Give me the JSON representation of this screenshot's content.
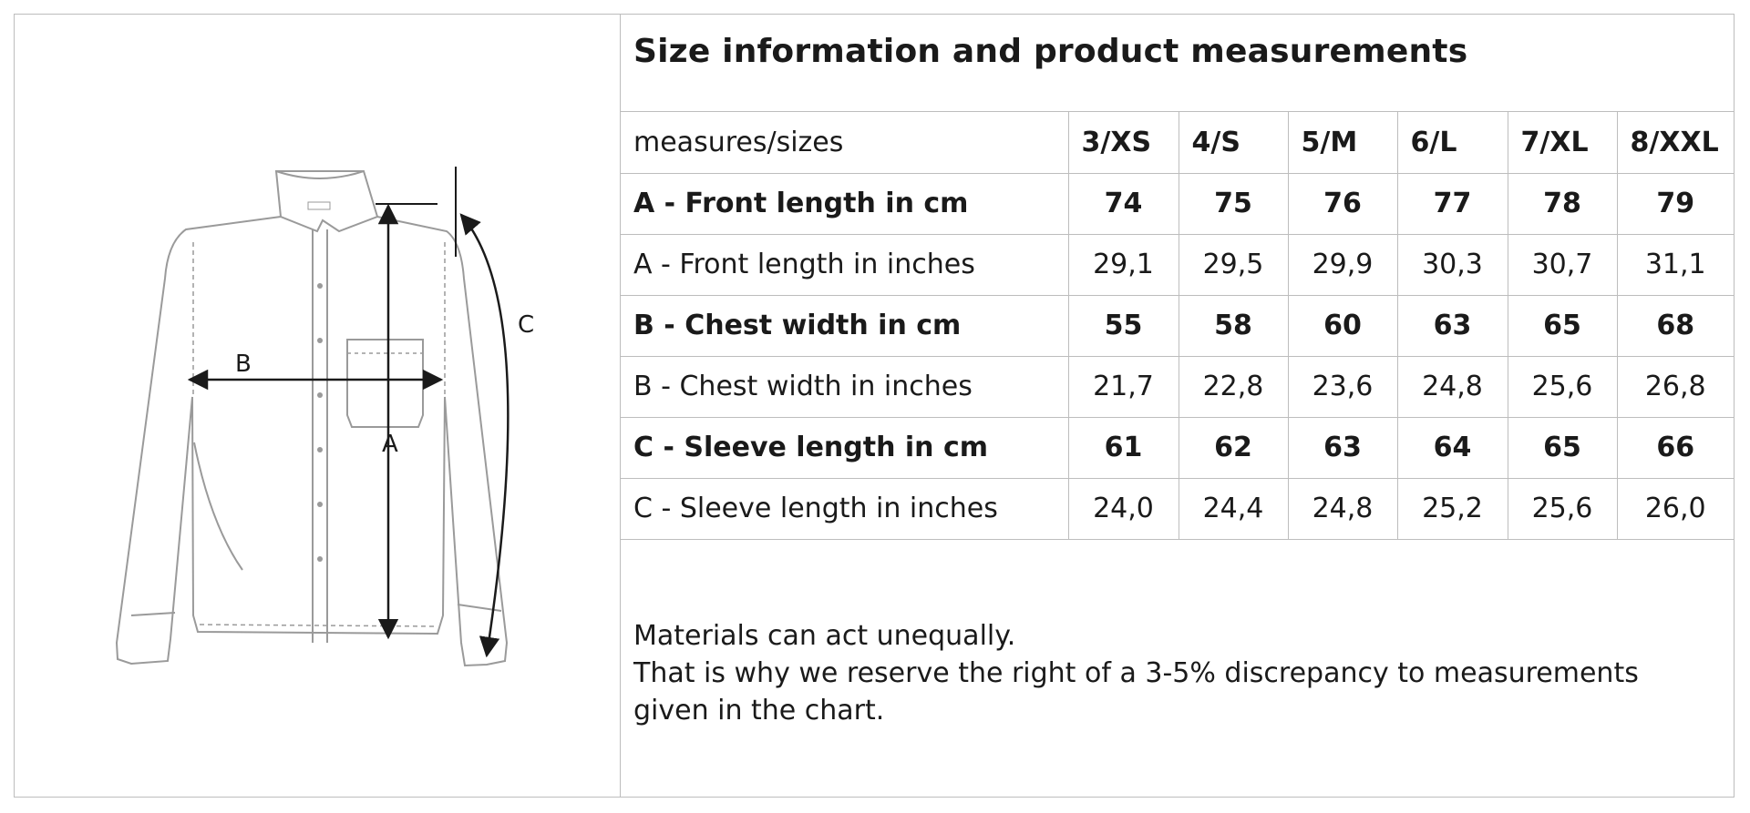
{
  "title": "Size information and product measurements",
  "table": {
    "corner_label": "measures/sizes",
    "sizes": [
      "3/XS",
      "4/S",
      "5/M",
      "6/L",
      "7/XL",
      "8/XXL"
    ],
    "rows": [
      {
        "label": "A - Front length in cm",
        "bold": true,
        "values": [
          "74",
          "75",
          "76",
          "77",
          "78",
          "79"
        ]
      },
      {
        "label": "A - Front length in inches",
        "bold": false,
        "values": [
          "29,1",
          "29,5",
          "29,9",
          "30,3",
          "30,7",
          "31,1"
        ]
      },
      {
        "label": "B - Chest width in cm",
        "bold": true,
        "values": [
          "55",
          "58",
          "60",
          "63",
          "65",
          "68"
        ]
      },
      {
        "label": "B - Chest width in inches",
        "bold": false,
        "values": [
          "21,7",
          "22,8",
          "23,6",
          "24,8",
          "25,6",
          "26,8"
        ]
      },
      {
        "label": "C - Sleeve length in cm",
        "bold": true,
        "values": [
          "61",
          "62",
          "63",
          "64",
          "65",
          "66"
        ]
      },
      {
        "label": "C - Sleeve length in inches",
        "bold": false,
        "values": [
          "24,0",
          "24,4",
          "24,8",
          "25,2",
          "25,6",
          "26,0"
        ]
      }
    ]
  },
  "note": {
    "line1": "Materials can act unequally.",
    "line2": "That is why we reserve the right of a 3-5% discrepancy to measurements given in the chart."
  },
  "illustration": {
    "label_a": "A",
    "label_b": "B",
    "label_c": "C"
  }
}
